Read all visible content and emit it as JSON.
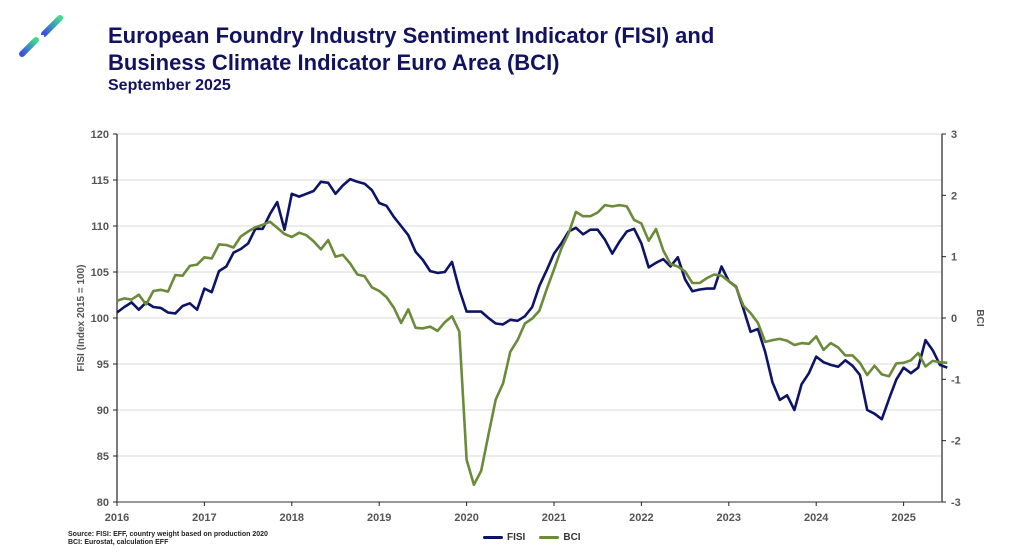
{
  "header": {
    "title_line1": "European Foundry Industry Sentiment Indicator (FISI) and",
    "title_line2": "Business Climate Indicator Euro Area (BCI)",
    "subtitle": "September 2025",
    "logo": "eff-star-logo-icon"
  },
  "footer": {
    "source_line1": "Source: FISI: EFF, country weight based on production 2020",
    "source_line2": "BCI: Eurostat, calculation EFF"
  },
  "colors": {
    "fisi": "#0d1466",
    "bci": "#6b8a3a",
    "grid": "#d9d9d9"
  },
  "chart_data": {
    "type": "line",
    "title": "European Foundry Industry Sentiment Indicator (FISI) and Business Climate Indicator Euro Area (BCI)",
    "xlabel": "",
    "ylabel": "FISI (Index 2015 = 100)",
    "y2label": "BCI",
    "ylim": [
      80,
      120
    ],
    "y2lim": [
      -3,
      3
    ],
    "yticks": [
      80,
      85,
      90,
      95,
      100,
      105,
      110,
      115,
      120
    ],
    "y2ticks": [
      -3,
      -2,
      -1,
      0,
      1,
      2,
      3
    ],
    "xticks": [
      "2016",
      "2017",
      "2018",
      "2019",
      "2020",
      "2021",
      "2022",
      "2023",
      "2024",
      "2025"
    ],
    "x_start": "2016-01",
    "frequency": "monthly",
    "grid": true,
    "legend": "bottom-center",
    "series": [
      {
        "name": "FISI",
        "axis": "left",
        "values": [
          100.6,
          101.2,
          101.7,
          100.9,
          101.7,
          101.2,
          101.1,
          100.6,
          100.5,
          101.3,
          101.6,
          100.9,
          103.2,
          102.8,
          105.1,
          105.6,
          107.1,
          107.5,
          108.1,
          109.7,
          109.7,
          111.3,
          112.6,
          109.6,
          113.5,
          113.2,
          113.5,
          113.8,
          114.8,
          114.7,
          113.5,
          114.4,
          115.1,
          114.8,
          114.6,
          113.9,
          112.5,
          112.2,
          111.0,
          110.0,
          109.0,
          107.2,
          106.3,
          105.1,
          104.9,
          105.0,
          106.1,
          103.1,
          100.7,
          100.7,
          100.7,
          100.0,
          99.4,
          99.3,
          99.8,
          99.7,
          100.2,
          101.2,
          103.5,
          105.2,
          107.0,
          108.1,
          109.4,
          109.8,
          109.1,
          109.6,
          109.6,
          108.5,
          107.0,
          108.3,
          109.4,
          109.7,
          108.1,
          105.5,
          106.0,
          106.4,
          105.6,
          106.6,
          104.2,
          102.9,
          103.1,
          103.2,
          103.2,
          105.6,
          104.0,
          103.4,
          101.0,
          98.5,
          98.8,
          96.3,
          93.0,
          91.1,
          91.6,
          90.0,
          92.8,
          94.0,
          95.8,
          95.2,
          94.9,
          94.7,
          95.4,
          94.8,
          93.8,
          90.0,
          89.6,
          89.0,
          91.2,
          93.3,
          94.6,
          94.0,
          94.6,
          97.6,
          96.5,
          94.9,
          94.6
        ]
      },
      {
        "name": "BCI",
        "axis": "right",
        "values": [
          0.28,
          0.32,
          0.3,
          0.38,
          0.22,
          0.44,
          0.46,
          0.43,
          0.7,
          0.69,
          0.85,
          0.87,
          0.99,
          0.97,
          1.2,
          1.19,
          1.15,
          1.33,
          1.41,
          1.48,
          1.52,
          1.57,
          1.47,
          1.37,
          1.32,
          1.39,
          1.35,
          1.25,
          1.12,
          1.27,
          1.0,
          1.03,
          0.89,
          0.71,
          0.68,
          0.5,
          0.44,
          0.34,
          0.17,
          -0.08,
          0.14,
          -0.16,
          -0.17,
          -0.14,
          -0.21,
          -0.07,
          0.03,
          -0.22,
          -2.31,
          -2.72,
          -2.49,
          -1.9,
          -1.33,
          -1.07,
          -0.55,
          -0.36,
          -0.09,
          -0.01,
          0.12,
          0.47,
          0.79,
          1.13,
          1.38,
          1.73,
          1.66,
          1.66,
          1.72,
          1.84,
          1.82,
          1.84,
          1.82,
          1.6,
          1.54,
          1.26,
          1.45,
          1.1,
          0.88,
          0.84,
          0.76,
          0.57,
          0.57,
          0.65,
          0.71,
          0.69,
          0.6,
          0.5,
          0.2,
          0.08,
          -0.08,
          -0.39,
          -0.36,
          -0.34,
          -0.37,
          -0.44,
          -0.41,
          -0.42,
          -0.3,
          -0.52,
          -0.41,
          -0.48,
          -0.61,
          -0.61,
          -0.73,
          -0.93,
          -0.78,
          -0.92,
          -0.95,
          -0.74,
          -0.73,
          -0.69,
          -0.57,
          -0.79,
          -0.7,
          -0.72,
          -0.73
        ]
      }
    ]
  }
}
